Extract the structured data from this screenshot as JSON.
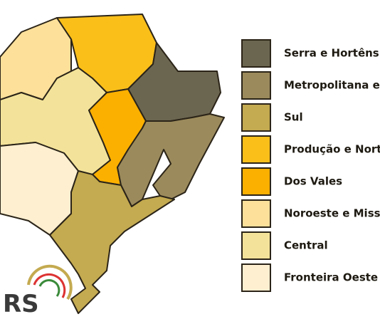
{
  "legend": {
    "items": [
      {
        "label": "Serra e Hortênsi",
        "color": "#6b6650"
      },
      {
        "label": "Metropolitana e",
        "color": "#9b8a5c"
      },
      {
        "label": "Sul",
        "color": "#c4aa50"
      },
      {
        "label": "Produção e Nort",
        "color": "#fbbf1a"
      },
      {
        "label": "Dos Vales",
        "color": "#fbb000"
      },
      {
        "label": "Noroeste e Miss",
        "color": "#fde09a"
      },
      {
        "label": "Central",
        "color": "#f3e39a"
      },
      {
        "label": "Fronteira Oeste",
        "color": "#fdefd0"
      }
    ]
  },
  "logo": {
    "text": "RS"
  }
}
